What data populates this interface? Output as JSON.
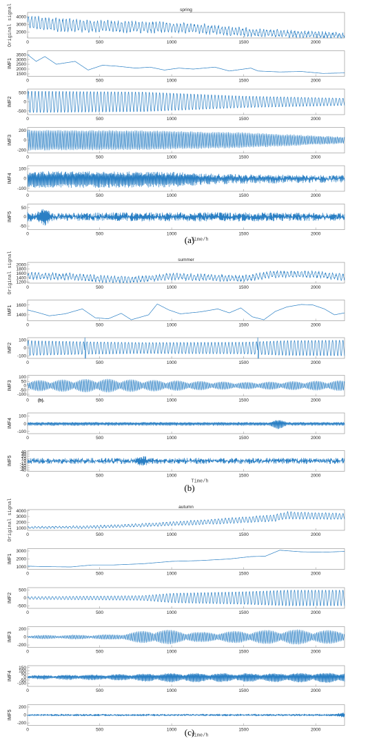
{
  "line_color": "#2a7fc4",
  "chart_data": [
    {
      "id": "a",
      "caption": "(a)",
      "title": "spring",
      "type": "line",
      "xlabel": "Time/h",
      "xlim": [
        0,
        2200
      ],
      "xticks": [
        0,
        500,
        1000,
        1500,
        2000
      ],
      "panels": [
        {
          "ylabel": "Original signal",
          "yticks": [
            2000,
            3000,
            4000
          ],
          "ylim": [
            1200,
            4600
          ],
          "gen": {
            "trend": [
              [
                0,
                3300
              ],
              [
                250,
                2900
              ],
              [
                600,
                2700
              ],
              [
                1000,
                2600
              ],
              [
                1200,
                2450
              ],
              [
                1500,
                2000
              ],
              [
                2200,
                1500
              ]
            ],
            "osc": [
              [
                0,
                800
              ],
              [
                1000,
                600
              ],
              [
                2200,
                250
              ]
            ],
            "period": 24,
            "noise": 200
          }
        },
        {
          "ylabel": "IMF1",
          "yticks": [
            1500,
            2000,
            2500,
            3000,
            3500
          ],
          "ylim": [
            1250,
            3900
          ],
          "gen": {
            "trend": [
              [
                0,
                3500
              ],
              [
                60,
                2800
              ],
              [
                120,
                3300
              ],
              [
                200,
                2500
              ],
              [
                330,
                2800
              ],
              [
                420,
                1900
              ],
              [
                520,
                2400
              ],
              [
                620,
                2300
              ],
              [
                750,
                2100
              ],
              [
                850,
                2200
              ],
              [
                950,
                1900
              ],
              [
                1050,
                2100
              ],
              [
                1150,
                2000
              ],
              [
                1300,
                2200
              ],
              [
                1400,
                1800
              ],
              [
                1500,
                2000
              ],
              [
                1550,
                2100
              ],
              [
                1600,
                1800
              ],
              [
                1750,
                1700
              ],
              [
                1900,
                1750
              ],
              [
                2050,
                1550
              ],
              [
                2200,
                1600
              ]
            ],
            "osc": [
              [
                0,
                0
              ]
            ],
            "period": 50,
            "noise": 0
          }
        },
        {
          "ylabel": "IMF2",
          "yticks": [
            -500,
            0,
            500
          ],
          "ylim": [
            -700,
            700
          ],
          "gen": {
            "trend": [
              [
                0,
                0
              ]
            ],
            "osc": [
              [
                0,
                600
              ],
              [
                800,
                550
              ],
              [
                1500,
                320
              ],
              [
                2200,
                200
              ]
            ],
            "period": 24,
            "noise": 0
          }
        },
        {
          "ylabel": "IMF3",
          "yticks": [
            -200,
            0,
            200
          ],
          "ylim": [
            -260,
            260
          ],
          "gen": {
            "trend": [
              [
                0,
                0
              ]
            ],
            "osc": [
              [
                0,
                200
              ],
              [
                800,
                190
              ],
              [
                1500,
                150
              ],
              [
                2200,
                60
              ]
            ],
            "period": 12,
            "noise": 10
          }
        },
        {
          "ylabel": "IMF4",
          "yticks": [
            -100,
            0,
            100
          ],
          "ylim": [
            -130,
            130
          ],
          "gen": {
            "trend": [
              [
                0,
                0
              ]
            ],
            "osc": [
              [
                0,
                80
              ],
              [
                1000,
                70
              ],
              [
                1300,
                40
              ],
              [
                2200,
                20
              ]
            ],
            "period": 6,
            "noise": 20
          }
        },
        {
          "ylabel": "IMF5",
          "yticks": [
            -50,
            0,
            50
          ],
          "ylim": [
            -70,
            70
          ],
          "gen": {
            "trend": [
              [
                0,
                0
              ]
            ],
            "osc": [
              [
                0,
                50
              ],
              [
                200,
                25
              ],
              [
                600,
                40
              ],
              [
                1500,
                40
              ],
              [
                2200,
                30
              ]
            ],
            "period": 4,
            "noise": 12,
            "burst": 120
          }
        }
      ]
    },
    {
      "id": "b",
      "caption": "(b)",
      "title": "summer",
      "type": "line",
      "xlabel": "Time/h",
      "xlim": [
        0,
        2200
      ],
      "xticks": [
        0,
        500,
        1000,
        1500,
        2000
      ],
      "annotation": "(b).",
      "panels": [
        {
          "ylabel": "Original signal",
          "yticks": [
            1200,
            1400,
            1600,
            1800,
            2000
          ],
          "ylim": [
            1150,
            2100
          ],
          "gen": {
            "trend": [
              [
                0,
                1480
              ],
              [
                300,
                1450
              ],
              [
                500,
                1350
              ],
              [
                700,
                1300
              ],
              [
                1000,
                1450
              ],
              [
                1300,
                1400
              ],
              [
                1500,
                1350
              ],
              [
                1700,
                1550
              ],
              [
                2000,
                1550
              ],
              [
                2200,
                1420
              ]
            ],
            "osc": [
              [
                0,
                120
              ],
              [
                2200,
                120
              ]
            ],
            "period": 24,
            "noise": 60
          }
        },
        {
          "ylabel": "IMF1",
          "yticks": [
            1400,
            1600
          ],
          "ylim": [
            1280,
            1700
          ],
          "gen": {
            "trend": [
              [
                0,
                1500
              ],
              [
                80,
                1440
              ],
              [
                150,
                1380
              ],
              [
                260,
                1420
              ],
              [
                380,
                1520
              ],
              [
                470,
                1340
              ],
              [
                560,
                1320
              ],
              [
                650,
                1430
              ],
              [
                720,
                1300
              ],
              [
                840,
                1400
              ],
              [
                900,
                1620
              ],
              [
                980,
                1500
              ],
              [
                1060,
                1420
              ],
              [
                1200,
                1460
              ],
              [
                1320,
                1520
              ],
              [
                1400,
                1440
              ],
              [
                1480,
                1540
              ],
              [
                1560,
                1360
              ],
              [
                1640,
                1300
              ],
              [
                1720,
                1470
              ],
              [
                1800,
                1560
              ],
              [
                1900,
                1610
              ],
              [
                1980,
                1600
              ],
              [
                2060,
                1520
              ],
              [
                2130,
                1400
              ],
              [
                2200,
                1440
              ]
            ],
            "osc": [
              [
                0,
                0
              ]
            ],
            "period": 50,
            "noise": 0
          }
        },
        {
          "ylabel": "IMF2",
          "yticks": [
            -100,
            0,
            100
          ],
          "ylim": [
            -130,
            130
          ],
          "gen": {
            "trend": [
              [
                0,
                0
              ]
            ],
            "osc": [
              [
                0,
                95
              ],
              [
                400,
                80
              ],
              [
                800,
                70
              ],
              [
                1500,
                75
              ],
              [
                1800,
                95
              ],
              [
                2200,
                100
              ]
            ],
            "period": 24,
            "noise": 0,
            "spike": [
              400,
              1600
            ]
          }
        },
        {
          "ylabel": "IMF3",
          "yticks": [
            -100,
            -50,
            0,
            50,
            100
          ],
          "ylim": [
            -120,
            120
          ],
          "gen": {
            "trend": [
              [
                0,
                0
              ]
            ],
            "osc": [
              [
                0,
                60
              ],
              [
                500,
                80
              ],
              [
                1000,
                60
              ],
              [
                1500,
                40
              ],
              [
                2200,
                60
              ]
            ],
            "period": 12,
            "noise": 0,
            "mod": 160
          }
        },
        {
          "ylabel": "IMF4",
          "yticks": [
            -100,
            0,
            100
          ],
          "ylim": [
            -130,
            140
          ],
          "gen": {
            "trend": [
              [
                0,
                0
              ]
            ],
            "osc": [
              [
                0,
                20
              ],
              [
                2200,
                20
              ]
            ],
            "period": 6,
            "noise": 6,
            "burst": 1740
          }
        },
        {
          "ylabel": "IMF5",
          "yticks": [
            -40,
            -30,
            -20,
            -10,
            0,
            10,
            20,
            30,
            40
          ],
          "ylim": [
            -45,
            45
          ],
          "gen": {
            "trend": [
              [
                0,
                0
              ]
            ],
            "osc": [
              [
                0,
                15
              ],
              [
                2200,
                15
              ]
            ],
            "period": 4,
            "noise": 8,
            "burst": 800
          }
        }
      ]
    },
    {
      "id": "c",
      "caption": "(c)",
      "title": "autumn",
      "type": "line",
      "xlabel": "Time/h",
      "xlim": [
        0,
        2200
      ],
      "xticks": [
        0,
        500,
        1000,
        1500,
        2000
      ],
      "panels": [
        {
          "ylabel": "Original signal",
          "yticks": [
            1000,
            2000,
            3000,
            4000
          ],
          "ylim": [
            600,
            4200
          ],
          "gen": {
            "trend": [
              [
                0,
                1100
              ],
              [
                400,
                1150
              ],
              [
                800,
                1500
              ],
              [
                1200,
                2000
              ],
              [
                1700,
                2700
              ],
              [
                1800,
                3200
              ],
              [
                2200,
                3000
              ]
            ],
            "osc": [
              [
                0,
                150
              ],
              [
                800,
                250
              ],
              [
                1800,
                600
              ],
              [
                2200,
                500
              ]
            ],
            "period": 24,
            "noise": 80
          }
        },
        {
          "ylabel": "IMF1",
          "yticks": [
            1000,
            2000,
            3000
          ],
          "ylim": [
            700,
            3300
          ],
          "gen": {
            "trend": [
              [
                0,
                1100
              ],
              [
                100,
                1050
              ],
              [
                300,
                1000
              ],
              [
                450,
                1250
              ],
              [
                600,
                1250
              ],
              [
                800,
                1400
              ],
              [
                1000,
                1700
              ],
              [
                1200,
                1800
              ],
              [
                1400,
                2000
              ],
              [
                1550,
                2300
              ],
              [
                1650,
                2350
              ],
              [
                1750,
                3100
              ],
              [
                1900,
                2900
              ],
              [
                2050,
                2850
              ],
              [
                2200,
                2950
              ]
            ],
            "osc": [
              [
                0,
                0
              ]
            ],
            "period": 50,
            "noise": 0
          }
        },
        {
          "ylabel": "IMF2",
          "yticks": [
            -500,
            0,
            500
          ],
          "ylim": [
            -650,
            650
          ],
          "gen": {
            "trend": [
              [
                0,
                0
              ]
            ],
            "osc": [
              [
                0,
                80
              ],
              [
                800,
                150
              ],
              [
                1000,
                300
              ],
              [
                1500,
                400
              ],
              [
                1800,
                500
              ],
              [
                2200,
                500
              ]
            ],
            "period": 24,
            "noise": 0
          }
        },
        {
          "ylabel": "IMF3",
          "yticks": [
            -200,
            0,
            200
          ],
          "ylim": [
            -260,
            260
          ],
          "gen": {
            "trend": [
              [
                0,
                0
              ]
            ],
            "osc": [
              [
                0,
                40
              ],
              [
                600,
                60
              ],
              [
                900,
                200
              ],
              [
                1200,
                120
              ],
              [
                1800,
                190
              ],
              [
                2200,
                160
              ]
            ],
            "period": 12,
            "noise": 5,
            "mod": 220
          }
        },
        {
          "ylabel": "IMF4",
          "yticks": [
            -100,
            -50,
            0,
            50,
            100,
            150
          ],
          "ylim": [
            -150,
            180
          ],
          "gen": {
            "trend": [
              [
                0,
                0
              ]
            ],
            "osc": [
              [
                0,
                30
              ],
              [
                600,
                50
              ],
              [
                1000,
                80
              ],
              [
                1600,
                70
              ],
              [
                2200,
                90
              ]
            ],
            "period": 6,
            "noise": 8,
            "mod": 180
          }
        },
        {
          "ylabel": "IMF5",
          "yticks": [
            -200,
            0,
            200
          ],
          "ylim": [
            -260,
            260
          ],
          "gen": {
            "trend": [
              [
                0,
                0
              ]
            ],
            "osc": [
              [
                0,
                30
              ],
              [
                2200,
                40
              ]
            ],
            "period": 4,
            "noise": 15,
            "burst": 2190
          }
        }
      ]
    }
  ]
}
